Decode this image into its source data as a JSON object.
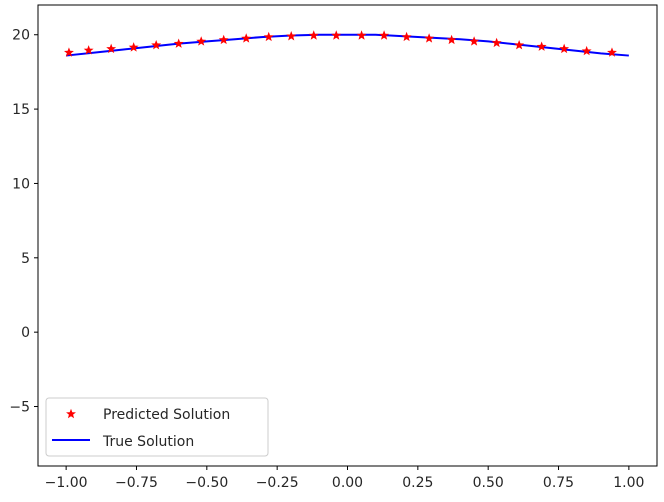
{
  "chart_data": {
    "type": "scatter",
    "title": "",
    "xlabel": "",
    "ylabel": "",
    "xlim": [
      -1.1,
      1.1
    ],
    "ylim": [
      -9,
      22
    ],
    "grid": false,
    "legend": {
      "position": "bottom-left",
      "entries": [
        {
          "label": "Predicted Solution",
          "color": "#ff0000",
          "marker": "star"
        },
        {
          "label": "True Solution",
          "color": "#0000ff",
          "style": "line"
        }
      ]
    },
    "x_ticks": [
      {
        "value": -1.0,
        "label": "−1.00"
      },
      {
        "value": -0.75,
        "label": "−0.75"
      },
      {
        "value": -0.5,
        "label": "−0.50"
      },
      {
        "value": -0.25,
        "label": "−0.25"
      },
      {
        "value": 0.0,
        "label": "0.00"
      },
      {
        "value": 0.25,
        "label": "0.25"
      },
      {
        "value": 0.5,
        "label": "0.50"
      },
      {
        "value": 0.75,
        "label": "0.75"
      },
      {
        "value": 1.0,
        "label": "1.00"
      }
    ],
    "y_ticks": [
      {
        "value": -5,
        "label": "−5"
      },
      {
        "value": 0,
        "label": "0"
      },
      {
        "value": 5,
        "label": "5"
      },
      {
        "value": 10,
        "label": "10"
      },
      {
        "value": 15,
        "label": "15"
      },
      {
        "value": 20,
        "label": "20"
      }
    ],
    "series": [
      {
        "name": "Predicted Solution",
        "kind": "scatter",
        "color": "#ff0000",
        "x": [
          -0.99,
          -0.92,
          -0.84,
          -0.76,
          -0.68,
          -0.6,
          -0.52,
          -0.44,
          -0.36,
          -0.28,
          -0.2,
          -0.12,
          -0.04,
          0.05,
          0.13,
          0.21,
          0.29,
          0.37,
          0.45,
          0.53,
          0.61,
          0.69,
          0.77,
          0.85,
          0.94
        ],
        "y": [
          18.8,
          18.95,
          19.05,
          19.15,
          19.3,
          19.4,
          19.55,
          19.65,
          19.75,
          19.85,
          19.9,
          19.95,
          19.95,
          19.95,
          19.95,
          19.85,
          19.75,
          19.65,
          19.55,
          19.45,
          19.3,
          19.2,
          19.05,
          18.9,
          18.8
        ]
      },
      {
        "name": "True Solution",
        "kind": "line",
        "color": "#0000ff",
        "x": [
          -1.0,
          -0.9,
          -0.8,
          -0.7,
          -0.6,
          -0.5,
          -0.4,
          -0.3,
          -0.2,
          -0.1,
          0.0,
          0.1,
          0.2,
          0.3,
          0.4,
          0.5,
          0.6,
          0.7,
          0.8,
          0.9,
          1.0
        ],
        "y": [
          18.6,
          18.8,
          19.0,
          19.2,
          19.4,
          19.55,
          19.7,
          19.85,
          19.95,
          20.0,
          20.0,
          20.0,
          19.9,
          19.8,
          19.7,
          19.55,
          19.35,
          19.15,
          18.95,
          18.75,
          18.6
        ]
      }
    ]
  }
}
